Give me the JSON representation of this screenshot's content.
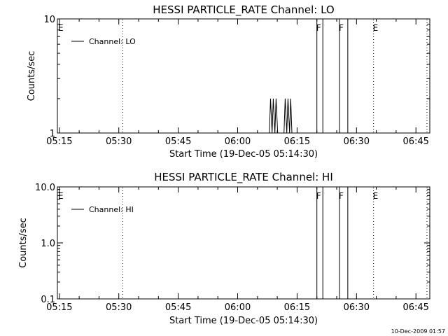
{
  "timestamp": "10-Dec-2009 01:57",
  "chart_data": [
    {
      "type": "line",
      "title": "HESSI PARTICLE_RATE Channel: LO",
      "xlabel": "Start Time (19-Dec-05 05:14:30)",
      "ylabel": "Counts/sec",
      "yscale": "log",
      "ylim": [
        1,
        10
      ],
      "xlim_min": [
        0,
        94
      ],
      "x_tick_labels": [
        "05:15",
        "05:30",
        "05:45",
        "06:00",
        "06:15",
        "06:30",
        "06:45"
      ],
      "x_tick_min": [
        0.5,
        15.5,
        30.5,
        45.5,
        60.5,
        75.5,
        90.5
      ],
      "y_tick_labels": [
        "1",
        "10"
      ],
      "y_tick_values": [
        1,
        10
      ],
      "legend": {
        "label": "Channel: LO",
        "placement": "top-left"
      },
      "series": [
        {
          "name": "Channel: LO",
          "x_min": [
            53.5,
            53.8,
            54.2,
            54.5,
            54.9,
            55.2,
            55.6,
            57.2,
            57.5,
            57.9,
            58.2,
            58.6,
            58.9,
            59.2
          ],
          "values": [
            1,
            2,
            1,
            2,
            1,
            2,
            1,
            1,
            2,
            1,
            2,
            1,
            2,
            1
          ]
        }
      ],
      "vertical_markers": [
        {
          "label": "E",
          "x_min": 0.0,
          "style": "dotted"
        },
        {
          "label": "",
          "x_min": 16.5,
          "style": "dotted"
        },
        {
          "label": "F",
          "x_min": 65.5,
          "style": "solid",
          "box_end_min": 67.0
        },
        {
          "label": "F",
          "x_min": 71.2,
          "style": "solid",
          "box_end_min": 73.3
        },
        {
          "label": "E",
          "x_min": 79.8,
          "style": "dotted"
        },
        {
          "label": "",
          "x_min": 97.5,
          "style": "dotted"
        }
      ]
    },
    {
      "type": "line",
      "title": "HESSI PARTICLE_RATE Channel: HI",
      "xlabel": "Start Time (19-Dec-05 05:14:30)",
      "ylabel": "Counts/sec",
      "yscale": "log",
      "ylim": [
        0.1,
        10
      ],
      "xlim_min": [
        0,
        94
      ],
      "x_tick_labels": [
        "05:15",
        "05:30",
        "05:45",
        "06:00",
        "06:15",
        "06:30",
        "06:45"
      ],
      "x_tick_min": [
        0.5,
        15.5,
        30.5,
        45.5,
        60.5,
        75.5,
        90.5
      ],
      "y_tick_labels": [
        "0.1",
        "1.0",
        "10.0"
      ],
      "y_tick_values": [
        0.1,
        1,
        10
      ],
      "legend": {
        "label": "Channel: HI",
        "placement": "top-left"
      },
      "series": [
        {
          "name": "Channel: HI",
          "x_min": [],
          "values": []
        }
      ],
      "vertical_markers": [
        {
          "label": "E",
          "x_min": 0.0,
          "style": "dotted"
        },
        {
          "label": "",
          "x_min": 16.5,
          "style": "dotted"
        },
        {
          "label": "F",
          "x_min": 65.5,
          "style": "solid",
          "box_end_min": 67.0
        },
        {
          "label": "F",
          "x_min": 71.2,
          "style": "solid",
          "box_end_min": 73.3
        },
        {
          "label": "E",
          "x_min": 79.8,
          "style": "dotted"
        },
        {
          "label": "",
          "x_min": 97.5,
          "style": "dotted"
        }
      ]
    }
  ]
}
